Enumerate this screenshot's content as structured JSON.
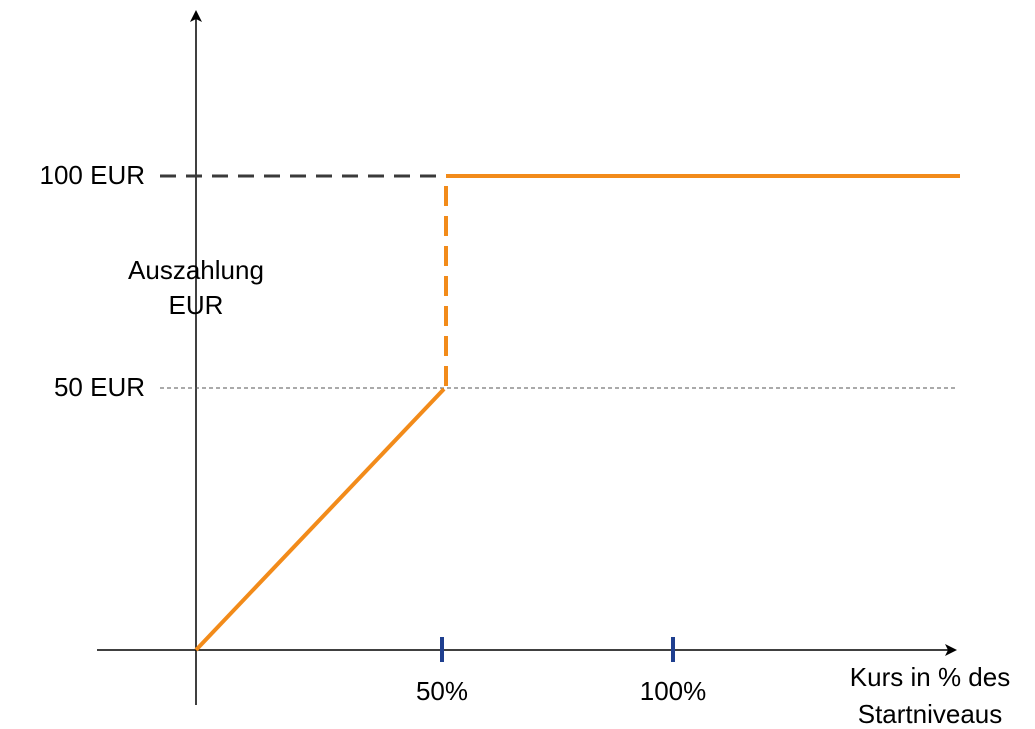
{
  "y_axis": {
    "label_lines": [
      "Auszahlung",
      "EUR"
    ],
    "ticks": [
      "100 EUR",
      "50 EUR"
    ]
  },
  "x_axis": {
    "label_lines": [
      "Kurs in % des",
      "Startniveaus"
    ],
    "ticks": [
      "50%",
      "100%"
    ]
  }
}
